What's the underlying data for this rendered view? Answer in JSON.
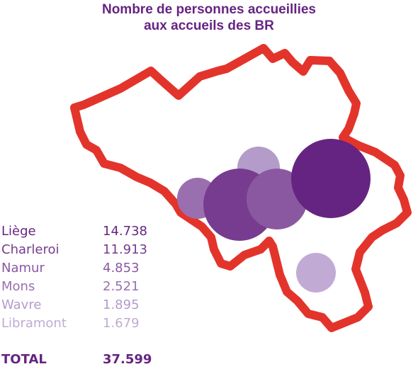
{
  "title": {
    "line1": "Nombre de personnes accueillies",
    "line2": "aux accueils des BR"
  },
  "colors": {
    "title": "#662482",
    "border": "#e3342b",
    "circles": [
      "#662482",
      "#773c8f",
      "#8a58a0",
      "#9a6fb0",
      "#b39bca",
      "#c1abd4"
    ]
  },
  "map_data": {
    "region": "Belgium",
    "locations": [
      {
        "city": "Liège",
        "value": "14.738"
      },
      {
        "city": "Charleroi",
        "value": "11.913"
      },
      {
        "city": "Namur",
        "value": "4.853"
      },
      {
        "city": "Mons",
        "value": "2.521"
      },
      {
        "city": "Wavre",
        "value": "1.895"
      },
      {
        "city": "Libramont",
        "value": "1.679"
      }
    ],
    "total": {
      "label": "TOTAL",
      "value": "37.599"
    }
  }
}
